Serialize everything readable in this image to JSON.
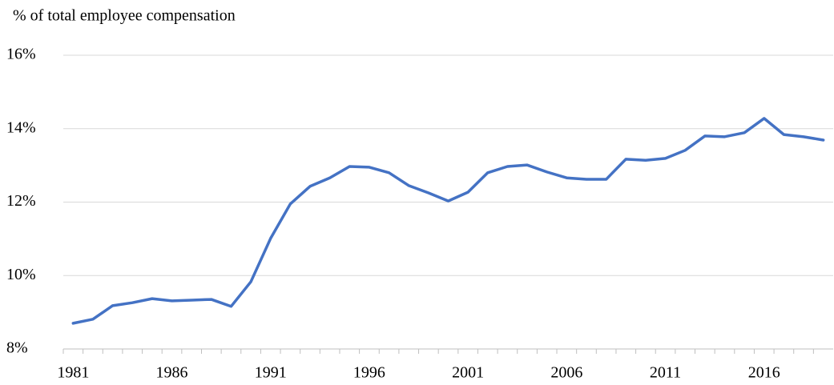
{
  "chart_data": {
    "type": "line",
    "y_axis_label": "% of  total employee compensation",
    "x": [
      1981,
      1982,
      1983,
      1984,
      1985,
      1986,
      1987,
      1988,
      1989,
      1990,
      1991,
      1992,
      1993,
      1994,
      1995,
      1996,
      1997,
      1998,
      1999,
      2000,
      2001,
      2002,
      2003,
      2004,
      2005,
      2006,
      2007,
      2008,
      2009,
      2010,
      2011,
      2012,
      2013,
      2014,
      2015,
      2016,
      2017,
      2018,
      2019
    ],
    "series": [
      {
        "color": "#4472c4",
        "values": [
          8.7,
          8.81,
          9.18,
          9.26,
          9.37,
          9.31,
          9.33,
          9.35,
          9.16,
          9.83,
          11.01,
          11.95,
          12.43,
          12.66,
          12.97,
          12.95,
          12.8,
          12.45,
          12.25,
          12.03,
          12.27,
          12.8,
          12.97,
          13.01,
          12.82,
          12.66,
          12.62,
          12.62,
          13.17,
          13.14,
          13.19,
          13.41,
          13.8,
          13.78,
          13.89,
          14.28,
          13.84,
          13.78,
          13.69
        ]
      }
    ],
    "xlim": [
      1980.5,
      2019.5
    ],
    "xticks": [
      1981,
      1986,
      1991,
      1996,
      2001,
      2006,
      2011,
      2016
    ],
    "ylim": [
      8,
      16
    ],
    "yticks": [
      {
        "value": 8,
        "label": "8%"
      },
      {
        "value": 10,
        "label": "10%"
      },
      {
        "value": 12,
        "label": "12%"
      },
      {
        "value": 14,
        "label": "14%"
      },
      {
        "value": 16,
        "label": "16%"
      }
    ],
    "grid": true
  }
}
